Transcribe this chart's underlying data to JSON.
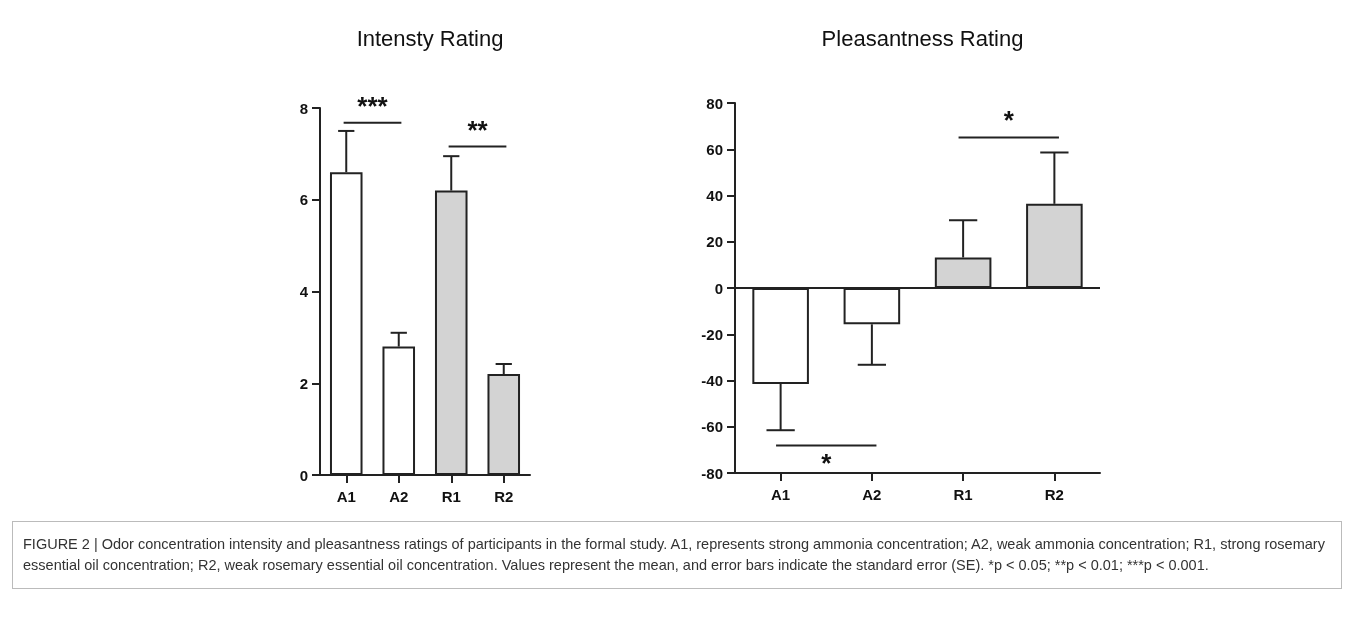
{
  "chart_data": [
    {
      "type": "bar",
      "title": "Intensty Rating",
      "categories": [
        "A1",
        "A2",
        "R1",
        "R2"
      ],
      "values": [
        6.6,
        2.8,
        6.2,
        2.2
      ],
      "colors": [
        "#ffffff",
        "#ffffff",
        "#d3d3d3",
        "#d3d3d3"
      ],
      "errors": [
        [
          6.6,
          7.5
        ],
        [
          2.8,
          3.1
        ],
        [
          6.2,
          6.95
        ],
        [
          2.2,
          2.42
        ]
      ],
      "ylim": [
        0,
        8
      ],
      "yticks": [
        0,
        2,
        4,
        6,
        8
      ],
      "grid": false,
      "annotations": [
        "***",
        "**",
        "FIGURE 2 | Odor concentration intensity and pleasantness ratings of participants in the formal study. A1, represents strong ammonia concentration; A2, weak ammonia concentration; R1, strong rosemary essential oil concentration; R2, weak rosemary essential oil concentration. Values represent the mean, and error bars indicate the standard error (SE). *p < 0.05; **p < 0.01; ***p < 0.001."
      ]
    },
    {
      "type": "bar",
      "title": "Pleasantness Rating",
      "categories": [
        "A1",
        "A2",
        "R1",
        "R2"
      ],
      "values": [
        -41.5,
        -15.7,
        13.2,
        36.4
      ],
      "colors": [
        "#ffffff",
        "#ffffff",
        "#d3d3d3",
        "#d3d3d3"
      ],
      "errors": [
        [
          -61.5,
          -41.5
        ],
        [
          -33.2,
          -15.7
        ],
        [
          13.2,
          29.3
        ],
        [
          36.4,
          58.6
        ]
      ],
      "ylim": [
        -80,
        80
      ],
      "yticks": [
        -80,
        -60,
        -40,
        -20,
        0,
        20,
        40,
        60,
        80
      ],
      "grid": false,
      "ref_lines": [
        {
          "axis": "y",
          "value": 0
        }
      ],
      "annotations": [
        "*",
        "*"
      ]
    }
  ]
}
